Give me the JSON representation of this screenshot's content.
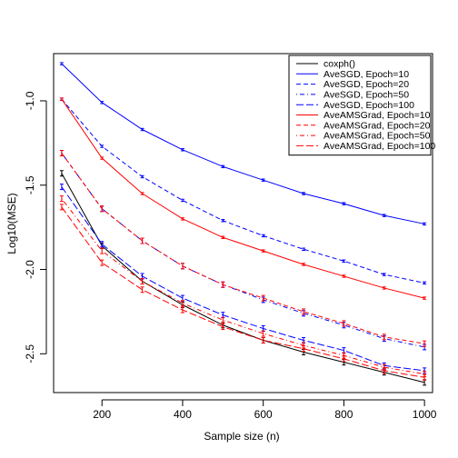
{
  "chart_data": {
    "type": "line",
    "xlabel": "Sample size (n)",
    "ylabel": "Log10(MSE)",
    "xlim": [
      80,
      1020
    ],
    "ylim": [
      -2.73,
      -0.72
    ],
    "x_ticks": [
      200,
      400,
      600,
      800,
      1000
    ],
    "y_ticks": [
      -1.0,
      -1.5,
      -2.0,
      -2.5
    ],
    "x_tick_labels": [
      "200",
      "400",
      "600",
      "800",
      "1000"
    ],
    "y_tick_labels": [
      "-1.0",
      "-1.5",
      "-2.0",
      "-2.5"
    ],
    "legend_position": "top-right",
    "grid": false,
    "x": [
      100,
      200,
      300,
      400,
      500,
      600,
      700,
      800,
      900,
      1000
    ],
    "series": [
      {
        "name": "coxph()",
        "color": "#000000",
        "dash": "solid",
        "error_bars": true,
        "values": [
          -1.43,
          -1.86,
          -2.07,
          -2.21,
          -2.33,
          -2.42,
          -2.49,
          -2.55,
          -2.61,
          -2.67
        ]
      },
      {
        "name": "AveSGD, Epoch=10",
        "color": "#0000ff",
        "dash": "solid",
        "error_bars": false,
        "values": [
          -0.78,
          -1.01,
          -1.17,
          -1.29,
          -1.39,
          -1.47,
          -1.55,
          -1.61,
          -1.68,
          -1.73
        ]
      },
      {
        "name": "AveSGD, Epoch=20",
        "color": "#0000ff",
        "dash": "dashed",
        "error_bars": false,
        "values": [
          -0.99,
          -1.27,
          -1.45,
          -1.59,
          -1.71,
          -1.8,
          -1.88,
          -1.95,
          -2.03,
          -2.08
        ]
      },
      {
        "name": "AveSGD, Epoch=50",
        "color": "#0000ff",
        "dash": "dotdash",
        "error_bars": true,
        "values": [
          -1.31,
          -1.64,
          -1.83,
          -1.98,
          -2.09,
          -2.18,
          -2.26,
          -2.33,
          -2.41,
          -2.46
        ]
      },
      {
        "name": "AveSGD, Epoch=100",
        "color": "#0000ff",
        "dash": "longdash",
        "error_bars": true,
        "values": [
          -1.51,
          -1.85,
          -2.04,
          -2.17,
          -2.27,
          -2.35,
          -2.42,
          -2.48,
          -2.57,
          -2.6
        ]
      },
      {
        "name": "AveAMSGrad, Epoch=10",
        "color": "#ff0000",
        "dash": "solid",
        "error_bars": false,
        "values": [
          -0.99,
          -1.34,
          -1.55,
          -1.7,
          -1.81,
          -1.89,
          -1.97,
          -2.04,
          -2.11,
          -2.17
        ]
      },
      {
        "name": "AveAMSGrad, Epoch=20",
        "color": "#ff0000",
        "dash": "dashed",
        "error_bars": true,
        "values": [
          -1.31,
          -1.64,
          -1.83,
          -1.98,
          -2.09,
          -2.17,
          -2.25,
          -2.32,
          -2.4,
          -2.44
        ]
      },
      {
        "name": "AveAMSGrad, Epoch=50",
        "color": "#ff0000",
        "dash": "dotdash",
        "error_bars": true,
        "values": [
          -1.58,
          -1.89,
          -2.07,
          -2.2,
          -2.3,
          -2.38,
          -2.45,
          -2.51,
          -2.58,
          -2.62
        ]
      },
      {
        "name": "AveAMSGrad, Epoch=100",
        "color": "#ff0000",
        "dash": "longdash",
        "error_bars": true,
        "values": [
          -1.63,
          -1.96,
          -2.12,
          -2.24,
          -2.34,
          -2.42,
          -2.47,
          -2.53,
          -2.6,
          -2.64
        ]
      }
    ]
  }
}
